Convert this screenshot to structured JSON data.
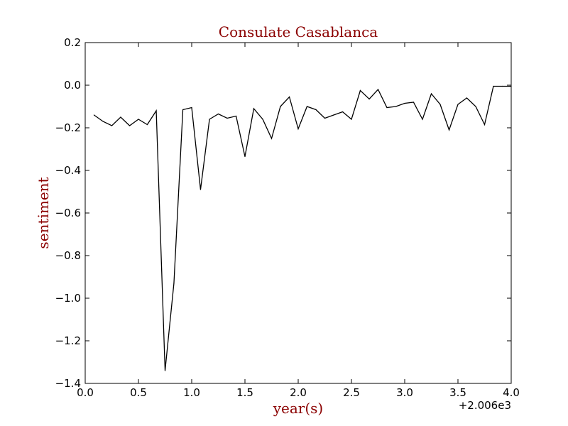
{
  "chart_data": {
    "type": "line",
    "title": "Consulate Casablanca",
    "xlabel": "year(s)",
    "ylabel": "sentiment",
    "x_offset_label": "+2.006e3",
    "xlim": [
      0.0,
      4.0
    ],
    "ylim": [
      -1.4,
      0.2
    ],
    "x_ticks": [
      0.0,
      0.5,
      1.0,
      1.5,
      2.0,
      2.5,
      3.0,
      3.5,
      4.0
    ],
    "x_tick_labels": [
      "0.0",
      "0.5",
      "1.0",
      "1.5",
      "2.0",
      "2.5",
      "3.0",
      "3.5",
      "4.0"
    ],
    "y_ticks": [
      0.2,
      0.0,
      -0.2,
      -0.4,
      -0.6,
      -0.8,
      -1.0,
      -1.2,
      -1.4
    ],
    "y_tick_labels": [
      "0.2",
      "0.0",
      "−0.2",
      "−0.4",
      "−0.6",
      "−0.8",
      "−1.0",
      "−1.2",
      "−1.4"
    ],
    "grid": false,
    "series": [
      {
        "color": "#000000",
        "x": [
          0.083,
          0.167,
          0.25,
          0.333,
          0.417,
          0.5,
          0.583,
          0.667,
          0.75,
          0.833,
          0.917,
          1.0,
          1.083,
          1.167,
          1.25,
          1.333,
          1.417,
          1.5,
          1.583,
          1.667,
          1.75,
          1.833,
          1.917,
          2.0,
          2.083,
          2.167,
          2.25,
          2.333,
          2.417,
          2.5,
          2.583,
          2.667,
          2.75,
          2.833,
          2.917,
          3.0,
          3.083,
          3.167,
          3.25,
          3.333,
          3.417,
          3.5,
          3.583,
          3.667,
          3.75,
          3.833,
          3.917,
          4.0
        ],
        "values": [
          -0.14,
          -0.17,
          -0.19,
          -0.15,
          -0.19,
          -0.16,
          -0.185,
          -0.12,
          -1.34,
          -0.93,
          -0.115,
          -0.105,
          -0.49,
          -0.16,
          -0.135,
          -0.155,
          -0.145,
          -0.335,
          -0.11,
          -0.16,
          -0.25,
          -0.1,
          -0.055,
          -0.205,
          -0.1,
          -0.115,
          -0.155,
          -0.14,
          -0.125,
          -0.16,
          -0.025,
          -0.065,
          -0.02,
          -0.105,
          -0.1,
          -0.085,
          -0.08,
          -0.16,
          -0.04,
          -0.09,
          -0.21,
          -0.09,
          -0.06,
          -0.1,
          -0.185,
          -0.005,
          -0.005,
          -0.005
        ]
      }
    ]
  }
}
